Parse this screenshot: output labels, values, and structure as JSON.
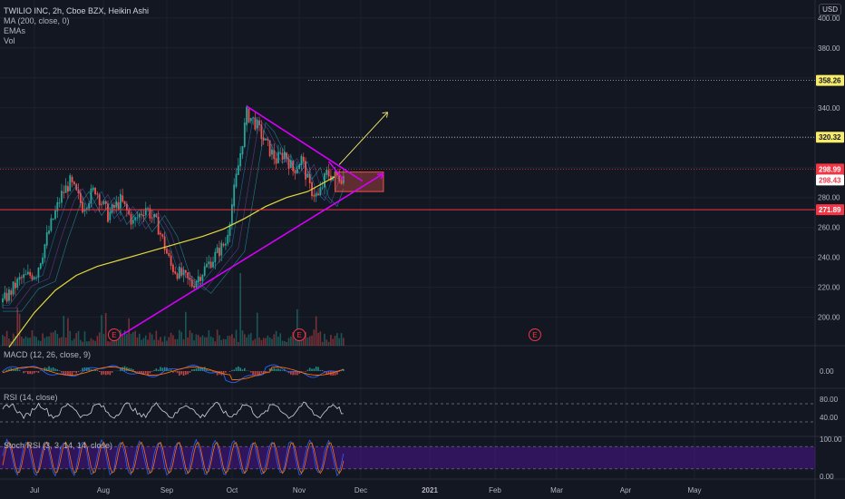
{
  "header": {
    "symbol_line": "TWILIO INC, 2h, Cboe BZX, Heikin Ashi",
    "ma_line": "MA (200, close, 0)",
    "emas_line": "EMAs",
    "vol_line": "Vol"
  },
  "currency": "USD",
  "indicators": {
    "macd": "MACD (12, 26, close, 9)",
    "rsi": "RSI (14, close)",
    "stoch": "Stoch RSI (3, 3, 14, 14, close)"
  },
  "colors": {
    "background": "#131722",
    "up": "#26a69a",
    "down": "#ef5350",
    "ma": "#e5d93c",
    "trendline": "#d500f9",
    "support": "#f23645",
    "resistance_dotted": "#b2b5be",
    "arrow": "#f7ec6a",
    "stoch_band": "#4a148c",
    "rsi_line": "#d1d4dc",
    "macd_line": "#2962ff",
    "signal_line": "#ff6d00"
  },
  "chart_data": {
    "type": "candlestick",
    "style": "Heikin Ashi",
    "x_tick_labels": [
      "Jul",
      "Aug",
      "Sep",
      "Oct",
      "Nov",
      "Dec",
      "2021",
      "Feb",
      "Mar",
      "Apr",
      "May"
    ],
    "y_tick_labels": [
      "400.00",
      "380.00",
      "360.00",
      "340.00",
      "320.00",
      "300.00",
      "280.00",
      "260.00",
      "240.00",
      "220.00",
      "200.00"
    ],
    "y_ticks": [
      400,
      380,
      360,
      340,
      320,
      300,
      280,
      260,
      240,
      220,
      200
    ],
    "ylim": [
      181,
      412
    ],
    "price_path": [
      [
        0,
        210
      ],
      [
        8,
        225
      ],
      [
        16,
        230
      ],
      [
        22,
        258
      ],
      [
        28,
        282
      ],
      [
        32,
        290
      ],
      [
        38,
        274
      ],
      [
        44,
        286
      ],
      [
        50,
        268
      ],
      [
        56,
        278
      ],
      [
        62,
        263
      ],
      [
        68,
        274
      ],
      [
        74,
        260
      ],
      [
        80,
        234
      ],
      [
        90,
        222
      ],
      [
        98,
        236
      ],
      [
        106,
        250
      ],
      [
        113,
        310
      ],
      [
        116,
        336
      ],
      [
        120,
        330
      ],
      [
        125,
        316
      ],
      [
        130,
        305
      ],
      [
        134,
        310
      ],
      [
        138,
        298
      ],
      [
        142,
        306
      ],
      [
        146,
        286
      ],
      [
        150,
        280
      ],
      [
        154,
        296
      ],
      [
        158,
        294
      ]
    ],
    "ma_path": [
      [
        3,
        180
      ],
      [
        15,
        203
      ],
      [
        25,
        218
      ],
      [
        35,
        228
      ],
      [
        45,
        234
      ],
      [
        55,
        238
      ],
      [
        65,
        242
      ],
      [
        75,
        246
      ],
      [
        85,
        250
      ],
      [
        95,
        254
      ],
      [
        105,
        259
      ],
      [
        115,
        266
      ],
      [
        125,
        274
      ],
      [
        135,
        280
      ],
      [
        145,
        284
      ],
      [
        158,
        294
      ]
    ],
    "price_labels": [
      {
        "text": "358.26",
        "value": 358.26,
        "bg": "#f7ec6a",
        "fg": "#131722"
      },
      {
        "text": "320.32",
        "value": 320.32,
        "bg": "#f7ec6a",
        "fg": "#131722"
      },
      {
        "text": "298.99",
        "value": 298.99,
        "bg": "#f23645",
        "fg": "#ffffff"
      },
      {
        "text": "298.43",
        "value": 298.43,
        "bg": "#ffffff",
        "fg": "#f23645"
      },
      {
        "text": "271.89",
        "value": 271.89,
        "bg": "#f23645",
        "fg": "#ffffff"
      }
    ],
    "horizontal_levels": [
      {
        "value": 358.26,
        "style": "dotted"
      },
      {
        "value": 320.32,
        "style": "dotted"
      },
      {
        "value": 298.99,
        "style": "dotted-red"
      },
      {
        "value": 271.89,
        "style": "solid-red"
      }
    ],
    "trendlines": [
      {
        "name": "upper-trendline",
        "from": [
          116,
          341
        ],
        "to": [
          171,
          291
        ]
      },
      {
        "name": "lower-trendline",
        "from": [
          53,
          185
        ],
        "to": [
          181,
          296
        ]
      },
      {
        "name": "upper-to-apex",
        "from": [
          155,
          304
        ],
        "to": [
          162,
          292
        ]
      }
    ],
    "projection_arrow": {
      "from": [
        160,
        302
      ],
      "to": [
        183,
        337
      ]
    },
    "target_box": {
      "x0": 158,
      "x1": 181,
      "top": 297,
      "bottom": 284
    },
    "earnings_markers": [
      {
        "text": "E",
        "index": 53
      },
      {
        "text": "E",
        "index": 141
      },
      {
        "text": "E",
        "index": 253
      }
    ],
    "macd": {
      "zero_label": "0.00"
    },
    "rsi": {
      "labels": [
        "80.00",
        "40.00"
      ]
    },
    "stoch_rsi": {
      "labels": [
        "100.00",
        "0.00"
      ]
    }
  }
}
